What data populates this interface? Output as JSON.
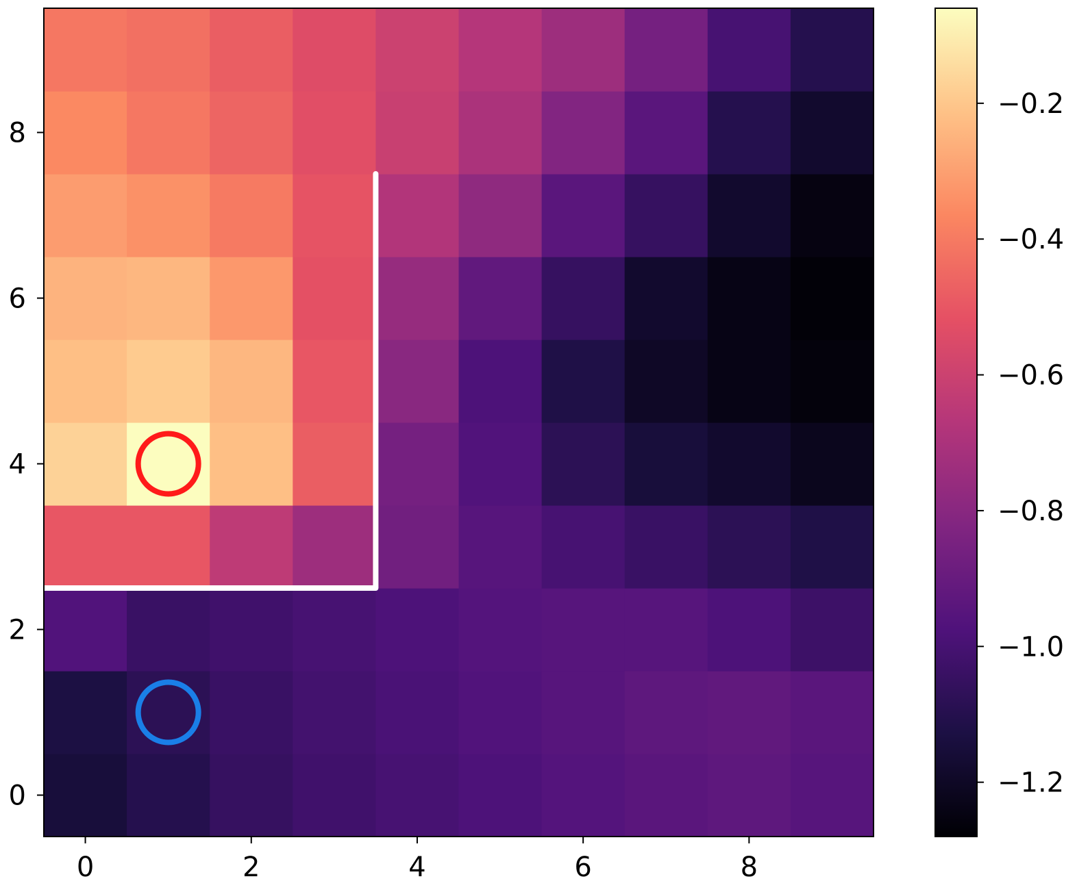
{
  "chart_data": {
    "type": "heatmap",
    "title": "",
    "xlabel": "",
    "ylabel": "",
    "colormap": "magma",
    "x": [
      0,
      1,
      2,
      3,
      4,
      5,
      6,
      7,
      8,
      9
    ],
    "y": [
      0,
      1,
      2,
      3,
      4,
      5,
      6,
      7,
      8,
      9
    ],
    "xlim": [
      -0.5,
      9.5
    ],
    "ylim": [
      -0.5,
      9.5
    ],
    "xticks": [
      0,
      2,
      4,
      6,
      8
    ],
    "xtick_labels": [
      "0",
      "2",
      "4",
      "6",
      "8"
    ],
    "yticks": [
      0,
      2,
      4,
      6,
      8
    ],
    "ytick_labels": [
      "0",
      "2",
      "4",
      "6",
      "8"
    ],
    "colorbar": {
      "range": [
        -1.28,
        -0.06
      ],
      "ticks": [
        -0.2,
        -0.4,
        -0.6,
        -0.8,
        -1.0,
        -1.2
      ],
      "tick_labels": [
        "−0.2",
        "−0.4",
        "−0.6",
        "−0.8",
        "−1.0",
        "−1.2"
      ]
    },
    "values": [
      [
        -1.15,
        -1.1,
        -1.05,
        -1.02,
        -1.0,
        -0.98,
        -0.96,
        -0.94,
        -0.93,
        -0.95
      ],
      [
        -1.13,
        -1.08,
        -1.04,
        -1.01,
        -0.99,
        -0.97,
        -0.95,
        -0.93,
        -0.92,
        -0.94
      ],
      [
        -0.97,
        -1.04,
        -1.02,
        -1.0,
        -0.98,
        -0.96,
        -0.95,
        -0.95,
        -0.98,
        -1.03
      ],
      [
        -0.5,
        -0.5,
        -0.64,
        -0.74,
        -0.87,
        -0.95,
        -1.0,
        -1.04,
        -1.08,
        -1.12
      ],
      [
        -0.17,
        -0.06,
        -0.22,
        -0.48,
        -0.86,
        -0.97,
        -1.08,
        -1.15,
        -1.18,
        -1.22
      ],
      [
        -0.22,
        -0.19,
        -0.24,
        -0.5,
        -0.8,
        -0.98,
        -1.12,
        -1.2,
        -1.24,
        -1.26
      ],
      [
        -0.25,
        -0.24,
        -0.32,
        -0.52,
        -0.76,
        -0.92,
        -1.05,
        -1.18,
        -1.24,
        -1.27
      ],
      [
        -0.31,
        -0.34,
        -0.4,
        -0.51,
        -0.68,
        -0.78,
        -0.94,
        -1.05,
        -1.18,
        -1.25
      ],
      [
        -0.36,
        -0.41,
        -0.46,
        -0.53,
        -0.61,
        -0.7,
        -0.82,
        -0.94,
        -1.1,
        -1.18
      ],
      [
        -0.41,
        -0.43,
        -0.48,
        -0.54,
        -0.6,
        -0.67,
        -0.74,
        -0.86,
        -1.0,
        -1.1
      ]
    ],
    "boundary_line": {
      "color": "#ffffff",
      "points": [
        [
          -0.5,
          2.5
        ],
        [
          3.5,
          2.5
        ],
        [
          3.5,
          7.5
        ]
      ]
    },
    "markers": [
      {
        "x": 1,
        "y": 4,
        "shape": "circle",
        "color": "#ff1a1a"
      },
      {
        "x": 1,
        "y": 1,
        "shape": "circle",
        "color": "#1a7fe8"
      }
    ],
    "grid": false,
    "legend": "none"
  }
}
